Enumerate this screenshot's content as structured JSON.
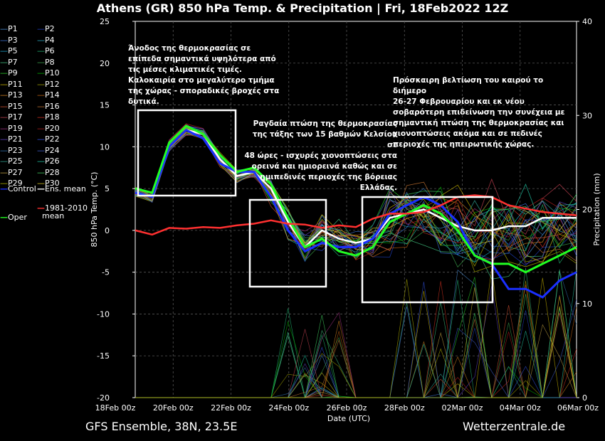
{
  "title": "Athens  (GR)  850 hPa Temp. & Precipitation | Fri, 18Feb2022 12Z",
  "footer_left": "GFS Ensemble, 38N, 23.5E",
  "footer_right": "Wetterzentrale.de",
  "annotations": [
    {
      "lines": [
        "Άνοδος της θερμοκρασίας σε",
        "επίπεδα σημαντικά υψηλότερα από",
        "τις μέσες κλιματικές τιμές.",
        "Καλοκαιρία στο μεγαλύτερο τμήμα",
        "της χώρας - σποραδικές βροχές στα",
        "δυτικά."
      ]
    },
    {
      "lines": [
        "Ραγδαία πτώση της θερμοκρασίας",
        "της τάξης των 15 βαθμών Κελσίου σε",
        "48 ώρες - ισχυρές χιονοπτώσεις στα",
        "ορεινά και ημιορεινά καθώς και σε",
        "ημιπεδινές περιοχές της βόρειας",
        "Ελλάδας."
      ]
    },
    {
      "lines": [
        "Πρόσκαιρη βελτίωση του καιρού το διήμερο",
        "26-27 Φεβρουαρίου και εκ νέου",
        "σοβαρότερη επιδείνωση την συνέχεια με",
        "σημαντική πτώση της θερμοκρασίας και",
        "χιονοπτώσεις ακόμα και σε πεδινές",
        "περιοχές της ηπειρωτικής χώρας."
      ]
    }
  ],
  "chart_data": {
    "type": "line",
    "xlabel": "Date (UTC)",
    "ylabel": "850 hPa Temp. (°C)",
    "y2label": "Precipitation (mm)",
    "ylim": [
      -20,
      25
    ],
    "y2lim": [
      0,
      40
    ],
    "yticks": [
      "25",
      "20",
      "15",
      "10",
      "5",
      "0",
      "-5",
      "-10",
      "-15",
      "-20"
    ],
    "y2ticks": [
      "40",
      "30",
      "20",
      "10",
      "0"
    ],
    "xticks": [
      "18Feb 00z",
      "20Feb 00z",
      "22Feb 00z",
      "24Feb 00z",
      "26Feb 00z",
      "28Feb 00z",
      "02Mar 00z",
      "04Mar 00z",
      "06Mar 00z"
    ],
    "grid": true,
    "legend": [
      "P1",
      "P2",
      "P3",
      "P4",
      "P5",
      "P6",
      "P7",
      "P8",
      "P9",
      "P10",
      "P11",
      "P12",
      "P13",
      "P14",
      "P15",
      "P16",
      "P17",
      "P18",
      "P19",
      "P20",
      "P21",
      "P22",
      "P23",
      "P24",
      "P25",
      "P26",
      "P27",
      "P28",
      "P29",
      "P30",
      "Control",
      "Ens. mean",
      "Oper",
      "1981-2010 mean"
    ],
    "legend_colors": [
      "#4a90d9",
      "#1f3fbf",
      "#3a6fd0",
      "#2aa8c0",
      "#1aa0c8",
      "#20b070",
      "#40c080",
      "#3aa04a",
      "#2acc2a",
      "#00b000",
      "#c8b400",
      "#a0a000",
      "#d08020",
      "#c06010",
      "#d05030",
      "#c07030",
      "#c04050",
      "#d03020",
      "#a03080",
      "#b02020",
      "#6040c0",
      "#3050e0",
      "#3070b0",
      "#4060d0",
      "#30a090",
      "#20c0a0",
      "#c0a040",
      "#40d060",
      "#b0b000",
      "#d0c020",
      "#1a2fff",
      "#ffffff",
      "#22ff22",
      "#ff3030"
    ],
    "series": [
      {
        "name": "Ens. mean",
        "values": [
          4.5,
          4,
          10,
          12,
          11.5,
          8.5,
          6.5,
          7,
          5,
          1,
          -2,
          0,
          -1,
          -1.5,
          -1,
          1.5,
          2,
          2.5,
          1.5,
          0.5,
          0,
          0,
          0.5,
          0.5,
          1.5,
          1.5,
          1.5
        ]
      },
      {
        "name": "Control",
        "values": [
          4.5,
          4,
          10,
          12,
          11,
          8,
          7,
          7,
          4,
          0,
          -2.5,
          -1.5,
          -2,
          -2,
          -1,
          2,
          3,
          4,
          3,
          1,
          -3,
          -4,
          -7,
          -7,
          -8,
          -6,
          -5
        ]
      },
      {
        "name": "Oper",
        "values": [
          5,
          4.5,
          10.5,
          12.5,
          11.5,
          9,
          7,
          7.5,
          5.5,
          1.5,
          -2,
          -1,
          -2.5,
          -3,
          -2,
          1,
          2,
          3,
          2,
          0,
          -3,
          -4,
          -4,
          -5,
          -4,
          -3,
          -2
        ]
      },
      {
        "name": "1981-2010 mean",
        "values": [
          0,
          -0.5,
          0.3,
          0.2,
          0.4,
          0.3,
          0.6,
          0.8,
          1.2,
          0.8,
          0.7,
          0.3,
          0.6,
          0.4,
          1.4,
          2,
          2,
          2.2,
          3,
          4,
          4.2,
          4,
          3,
          2.6,
          2.2,
          2,
          1.8
        ]
      }
    ]
  }
}
